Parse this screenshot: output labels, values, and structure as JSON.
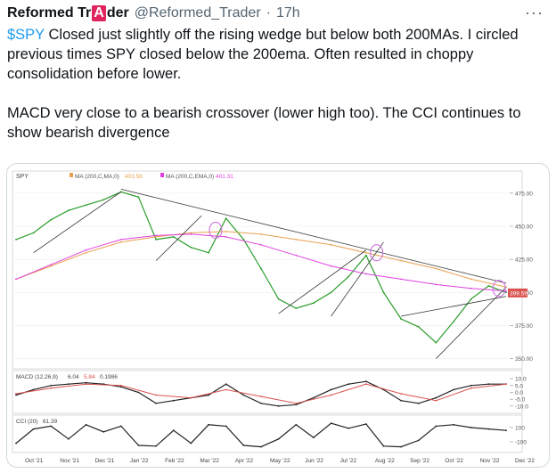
{
  "tweet": {
    "author_prefix": "Reformed Tr",
    "author_badge": "A",
    "author_suffix": "der",
    "handle": "@Reformed_Trader",
    "separator": "·",
    "time": "17h",
    "more_icon": "more-horizontal-icon",
    "cashtag": "$SPY",
    "line1_rest": " Closed just slightly off the rising wedge but below both 200MAs. I circled previous times SPY closed below the 200ema. Often resulted in choppy consolidation before lower.",
    "line2": "MACD very close to a bearish crossover (lower high too). The CCI continues to show bearish divergence"
  },
  "chart_data": [
    {
      "type": "line",
      "panel": "price",
      "title": "SPY",
      "legend": [
        {
          "label": "MA (200,C,MA,0)",
          "value": "403.56",
          "color": "#e8a050"
        },
        {
          "label": "MA (200,C,EMA,0)",
          "value": "401.31",
          "color": "#e040e0"
        }
      ],
      "x_tick_labels": [
        "Oct '21",
        "Nov '21",
        "Dec '21",
        "Jan '22",
        "Feb '22",
        "Mar '22",
        "Apr '22",
        "May '22",
        "Jun '22",
        "Jul '22",
        "Aug '22",
        "Sep '22",
        "Oct '22",
        "Nov '22",
        "Dec '22"
      ],
      "y_tick_labels": [
        "475.00",
        "450.00",
        "425.00",
        "400.00",
        "375.00",
        "350.00"
      ],
      "ylim": [
        345,
        485
      ],
      "last_price_label": "399.59",
      "series": [
        {
          "name": "SPY close",
          "color": "#2a9d2a",
          "x": [
            0,
            0.5,
            1,
            1.5,
            2,
            2.5,
            3,
            3.5,
            4,
            4.5,
            5,
            5.5,
            6,
            6.5,
            7,
            7.5,
            8,
            8.5,
            9,
            9.5,
            10,
            10.5,
            11,
            11.5,
            12,
            12.5,
            13,
            13.5,
            14
          ],
          "values": [
            440,
            445,
            455,
            462,
            466,
            470,
            476,
            472,
            440,
            442,
            434,
            430,
            456,
            440,
            418,
            395,
            388,
            392,
            400,
            412,
            428,
            400,
            380,
            374,
            362,
            378,
            395,
            405,
            400
          ]
        },
        {
          "name": "MA (200,C,MA,0)",
          "color": "#e8a050",
          "x": [
            0,
            1,
            2,
            3,
            4,
            5,
            6,
            7,
            8,
            9,
            10,
            11,
            12,
            13,
            14
          ],
          "values": [
            410,
            420,
            430,
            438,
            442,
            445,
            446,
            444,
            440,
            436,
            430,
            424,
            418,
            410,
            404
          ]
        },
        {
          "name": "MA (200,C,EMA,0)",
          "color": "#e040e0",
          "x": [
            0,
            1,
            2,
            3,
            4,
            5,
            6,
            7,
            8,
            9,
            10,
            11,
            12,
            13,
            14
          ],
          "values": [
            410,
            421,
            432,
            440,
            443,
            444,
            442,
            436,
            428,
            420,
            414,
            410,
            406,
            403,
            401
          ]
        }
      ]
    },
    {
      "type": "line",
      "panel": "macd",
      "title": "MACD (12,26,9)",
      "values_label": [
        "6.04",
        "5.84",
        "0.1986"
      ],
      "y_tick_labels": [
        "10.0",
        "5.0",
        "0.0",
        "-5.0",
        "-10.0"
      ],
      "ylim": [
        -14,
        12
      ],
      "series": [
        {
          "name": "MACD",
          "color": "#222222",
          "x": [
            0,
            0.5,
            1,
            1.5,
            2,
            2.5,
            3,
            3.5,
            4,
            4.5,
            5,
            5.5,
            6,
            6.5,
            7,
            7.5,
            8,
            8.5,
            9,
            9.5,
            10,
            10.5,
            11,
            11.5,
            12,
            12.5,
            13,
            13.5,
            14
          ],
          "values": [
            -2,
            2,
            5,
            6,
            7,
            6,
            4,
            0,
            -8,
            -6,
            -4,
            -2,
            6,
            -2,
            -8,
            -10,
            -9,
            -4,
            2,
            6,
            8,
            2,
            -6,
            -8,
            -4,
            2,
            5,
            6,
            6
          ]
        },
        {
          "name": "Signal",
          "color": "#d9534f",
          "x": [
            0,
            1,
            2,
            3,
            4,
            5,
            6,
            7,
            8,
            9,
            10,
            11,
            12,
            13,
            14
          ],
          "values": [
            -1,
            3,
            6,
            5,
            -2,
            -4,
            2,
            -3,
            -8,
            -2,
            6,
            -1,
            -6,
            3,
            6
          ]
        }
      ]
    },
    {
      "type": "line",
      "panel": "cci",
      "title": "CCI (20)",
      "values_label": "61.39",
      "y_tick_labels": [
        "100",
        "-100"
      ],
      "ylim": [
        -200,
        200
      ],
      "series": [
        {
          "name": "CCI",
          "color": "#222222",
          "x": [
            0,
            0.5,
            1,
            1.5,
            2,
            2.5,
            3,
            3.5,
            4,
            4.5,
            5,
            5.5,
            6,
            6.5,
            7,
            7.5,
            8,
            8.5,
            9,
            9.5,
            10,
            10.5,
            11,
            11.5,
            12,
            12.5,
            13,
            13.5,
            14
          ],
          "values": [
            -120,
            80,
            120,
            -60,
            140,
            40,
            120,
            -150,
            -160,
            60,
            -120,
            140,
            120,
            -150,
            -170,
            -60,
            140,
            -40,
            160,
            90,
            150,
            -160,
            -170,
            -80,
            120,
            140,
            100,
            80,
            60
          ]
        }
      ]
    }
  ]
}
